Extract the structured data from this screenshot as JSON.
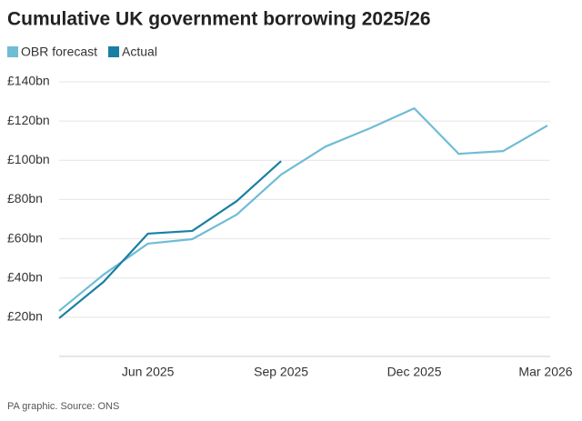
{
  "chart_data": {
    "type": "line",
    "title": "Cumulative UK government borrowing 2025/26",
    "source": "PA graphic. Source: ONS",
    "categories": [
      null,
      null,
      "Jun 2025",
      null,
      null,
      "Sep 2025",
      null,
      null,
      "Dec 2025",
      null,
      null,
      "Mar 2026"
    ],
    "series": [
      {
        "name": "OBR forecast",
        "color": "#6fbcd5",
        "values": [
          23.2,
          41.7,
          57.5,
          59.8,
          72.3,
          92.7,
          107,
          116.3,
          126.5,
          103.3,
          104.7,
          117.7
        ]
      },
      {
        "name": "Actual",
        "color": "#1a7fa3",
        "values": [
          19.5,
          38,
          62.6,
          64,
          79.2,
          99.6,
          null,
          null,
          null,
          null,
          null,
          null
        ]
      }
    ],
    "ylim": [
      0,
      140
    ],
    "yticks": [
      {
        "value": 20,
        "label": "£20bn"
      },
      {
        "value": 40,
        "label": "£40bn"
      },
      {
        "value": 60,
        "label": "£60bn"
      },
      {
        "value": 80,
        "label": "£80bn"
      },
      {
        "value": 100,
        "label": "£100bn"
      },
      {
        "value": 120,
        "label": "£120bn"
      },
      {
        "value": 140,
        "label": "£140bn"
      }
    ],
    "grid": true
  }
}
